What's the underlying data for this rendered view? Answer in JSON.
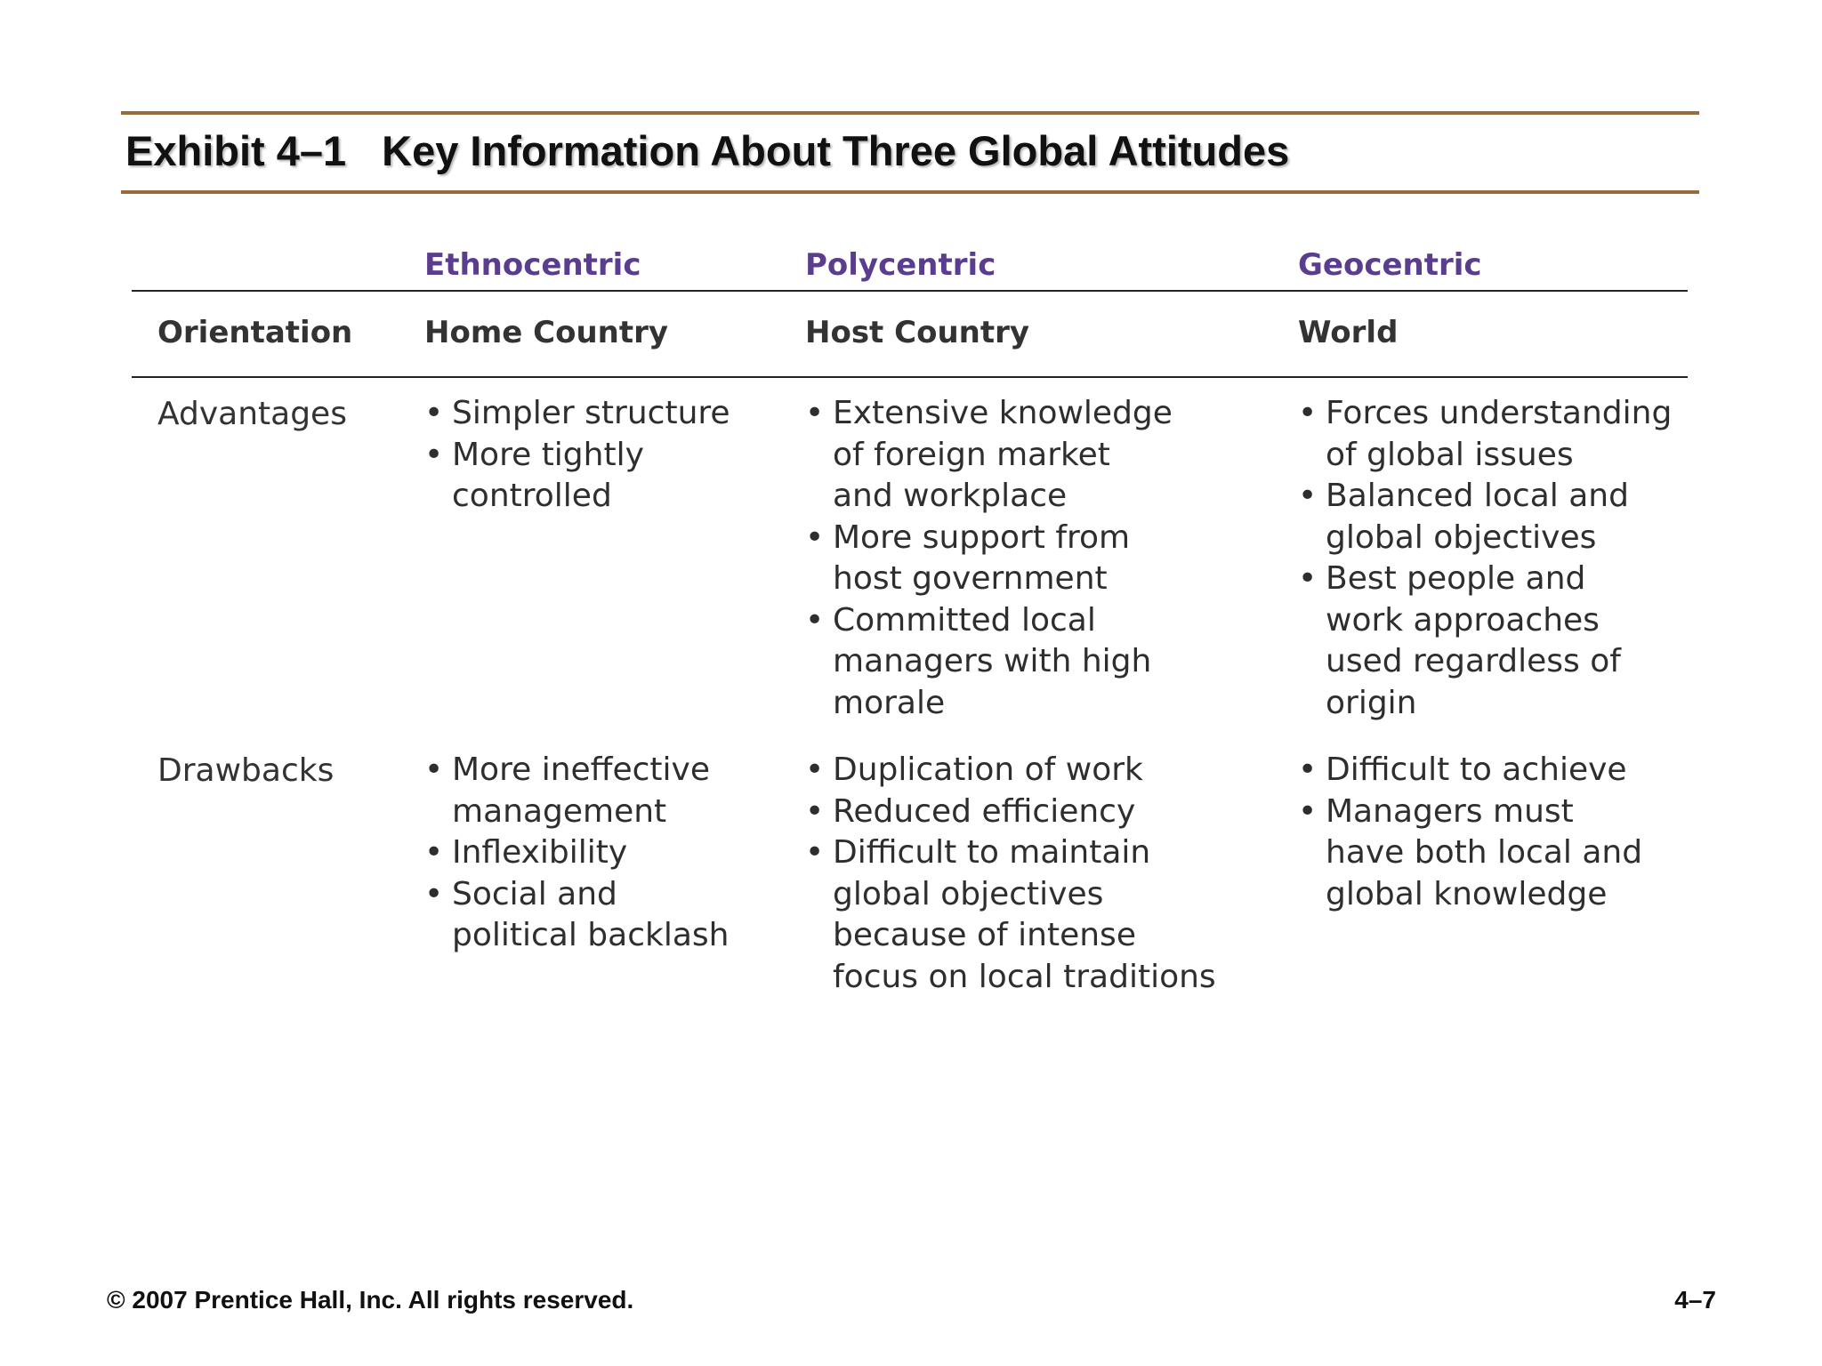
{
  "exhibit": {
    "number": "Exhibit 4–1",
    "title": "Key Information About Three Global Attitudes"
  },
  "table": {
    "columns": [
      "Ethnocentric",
      "Polycentric",
      "Geocentric"
    ],
    "orientation": {
      "label": "Orientation",
      "values": [
        "Home Country",
        "Host Country",
        "World"
      ]
    },
    "advantages": {
      "label": "Advantages",
      "ethnocentric": [
        "Simpler structure",
        "More tightly\ncontrolled"
      ],
      "polycentric": [
        "Extensive knowledge\nof foreign market\nand workplace",
        "More support from\nhost government",
        "Committed local\nmanagers with high\nmorale"
      ],
      "geocentric": [
        "Forces understanding\nof global issues",
        "Balanced local and\nglobal objectives",
        "Best people and\nwork approaches\nused regardless of\norigin"
      ]
    },
    "drawbacks": {
      "label": "Drawbacks",
      "ethnocentric": [
        "More ineffective\nmanagement",
        "Inflexibility",
        "Social and\npolitical backlash"
      ],
      "polycentric": [
        "Duplication of work",
        "Reduced efficiency",
        "Difficult to maintain\nglobal objectives\nbecause of intense\nfocus on local traditions"
      ],
      "geocentric": [
        "Difficult to achieve",
        "Managers must\nhave both local and\nglobal knowledge"
      ]
    }
  },
  "footer": {
    "copyright": "© 2007 Prentice Hall, Inc. All rights reserved.",
    "page": "4–7"
  },
  "colors": {
    "rule": "#9b6a3c",
    "column_heading": "#5a3d8f"
  }
}
